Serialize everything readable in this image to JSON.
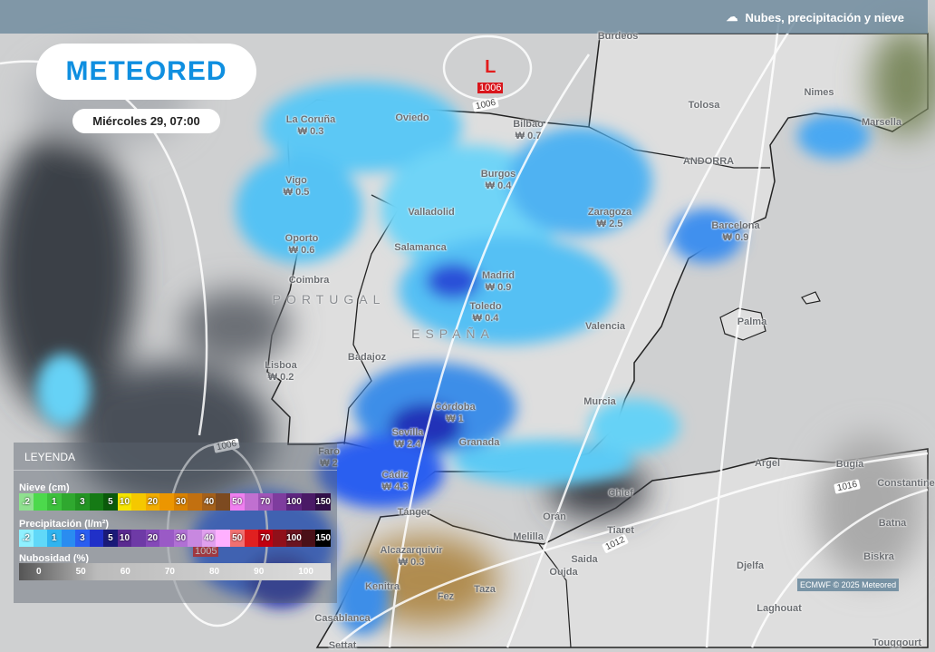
{
  "header": {
    "title": "Nubes, precipitación y nieve",
    "icon": "cloud-precipitation-icon"
  },
  "logo": "METEORED",
  "date": "Miércoles 29, 07:00",
  "low": {
    "symbol": "L",
    "pressure": "1006"
  },
  "low2": {
    "pressure": "1005"
  },
  "isobars": [
    "1006",
    "1006",
    "1012",
    "1016"
  ],
  "countries": [
    "PORTUGAL",
    "ESPAÑA"
  ],
  "cities": [
    {
      "name": "La Coruña",
      "value": "0.3"
    },
    {
      "name": "Oviedo"
    },
    {
      "name": "Bilbao",
      "value": "0.7"
    },
    {
      "name": "Burgos",
      "value": "0.4"
    },
    {
      "name": "Vigo",
      "value": "0.5"
    },
    {
      "name": "Valladolid"
    },
    {
      "name": "Zaragoza",
      "value": "2.5"
    },
    {
      "name": "Barcelona",
      "value": "0.9"
    },
    {
      "name": "Oporto",
      "value": "0.6"
    },
    {
      "name": "Salamanca"
    },
    {
      "name": "Coimbra"
    },
    {
      "name": "Madrid",
      "value": "0.9"
    },
    {
      "name": "Toledo",
      "value": "0.4"
    },
    {
      "name": "Valencia"
    },
    {
      "name": "Palma"
    },
    {
      "name": "Lisboa",
      "value": "0.2"
    },
    {
      "name": "Badajoz"
    },
    {
      "name": "Córdoba",
      "value": "1"
    },
    {
      "name": "Murcia"
    },
    {
      "name": "Sevilla",
      "value": "2.4"
    },
    {
      "name": "Granada"
    },
    {
      "name": "Faro",
      "value": "2"
    },
    {
      "name": "Cádiz",
      "value": "4.3"
    },
    {
      "name": "Tánger"
    },
    {
      "name": "Melilla"
    },
    {
      "name": "Alcazarquivir",
      "value": "0.3"
    },
    {
      "name": "Orán"
    },
    {
      "name": "Chlef"
    },
    {
      "name": "Argel"
    },
    {
      "name": "Bugía"
    },
    {
      "name": "Constantine"
    },
    {
      "name": "Tiaret"
    },
    {
      "name": "Saida"
    },
    {
      "name": "Oujda"
    },
    {
      "name": "Djelfa"
    },
    {
      "name": "Batna"
    },
    {
      "name": "Biskra"
    },
    {
      "name": "Kenitra"
    },
    {
      "name": "Fez"
    },
    {
      "name": "Taza"
    },
    {
      "name": "Laghouat"
    },
    {
      "name": "Casablanca"
    },
    {
      "name": "Touggourt"
    },
    {
      "name": "Settat"
    },
    {
      "name": "Burdeos"
    },
    {
      "name": "Tolosa"
    },
    {
      "name": "Nimes"
    },
    {
      "name": "Marsella"
    },
    {
      "name": "ANDORRA"
    }
  ],
  "value_prefix": "₩",
  "legend": {
    "title": "LEYENDA",
    "snow": {
      "label": "Nieve (cm)",
      "cells": [
        {
          "t": ".2",
          "c": "#8fe08f"
        },
        {
          "t": "",
          "c": "#4cd94c"
        },
        {
          "t": "1",
          "c": "#3cc03c"
        },
        {
          "t": "",
          "c": "#2fa82f"
        },
        {
          "t": "3",
          "c": "#239423"
        },
        {
          "t": "",
          "c": "#157a15"
        },
        {
          "t": "5",
          "c": "#0b5a0b"
        },
        {
          "t": "10",
          "c": "#f5e400"
        },
        {
          "t": "",
          "c": "#f5c800"
        },
        {
          "t": "20",
          "c": "#f2ad00"
        },
        {
          "t": "",
          "c": "#ec9600"
        },
        {
          "t": "30",
          "c": "#d98200"
        },
        {
          "t": "",
          "c": "#c27010"
        },
        {
          "t": "40",
          "c": "#a4601a"
        },
        {
          "t": "",
          "c": "#7d4a20"
        },
        {
          "t": "50",
          "c": "#f07ff0"
        },
        {
          "t": "",
          "c": "#c070d0"
        },
        {
          "t": "70",
          "c": "#a055b8"
        },
        {
          "t": "",
          "c": "#7e3c9e"
        },
        {
          "t": "100",
          "c": "#5e2580"
        },
        {
          "t": "",
          "c": "#4a1a66"
        },
        {
          "t": "150",
          "c": "#33104a"
        }
      ]
    },
    "precip": {
      "label": "Precipitación (l/m²)",
      "cells": [
        {
          "t": ".2",
          "c": "#8ff0ff"
        },
        {
          "t": "",
          "c": "#60d8f8"
        },
        {
          "t": "1",
          "c": "#30b4f0"
        },
        {
          "t": "",
          "c": "#2a8cf0"
        },
        {
          "t": "3",
          "c": "#2a5ef0"
        },
        {
          "t": "",
          "c": "#2030c8"
        },
        {
          "t": "5",
          "c": "#1a1a78"
        },
        {
          "t": "10",
          "c": "#5a2a90"
        },
        {
          "t": "",
          "c": "#6e3aa6"
        },
        {
          "t": "20",
          "c": "#8448b8"
        },
        {
          "t": "",
          "c": "#9a5ac6"
        },
        {
          "t": "30",
          "c": "#b070d4"
        },
        {
          "t": "",
          "c": "#c888e0"
        },
        {
          "t": "40",
          "c": "#e0a0ee"
        },
        {
          "t": "",
          "c": "#ffb0ff"
        },
        {
          "t": "50",
          "c": "#f07070"
        },
        {
          "t": "",
          "c": "#e02020"
        },
        {
          "t": "70",
          "c": "#c00010"
        },
        {
          "t": "",
          "c": "#90101a"
        },
        {
          "t": "100",
          "c": "#6a1420"
        },
        {
          "t": "",
          "c": "#4a1018"
        },
        {
          "t": "150",
          "c": "#000000"
        }
      ]
    },
    "cloud": {
      "label": "Nubosidad (%)",
      "ticks": [
        "0",
        "50",
        "60",
        "70",
        "80",
        "90",
        "100"
      ]
    }
  },
  "credit": "ECMWF © 2025 Meteored"
}
